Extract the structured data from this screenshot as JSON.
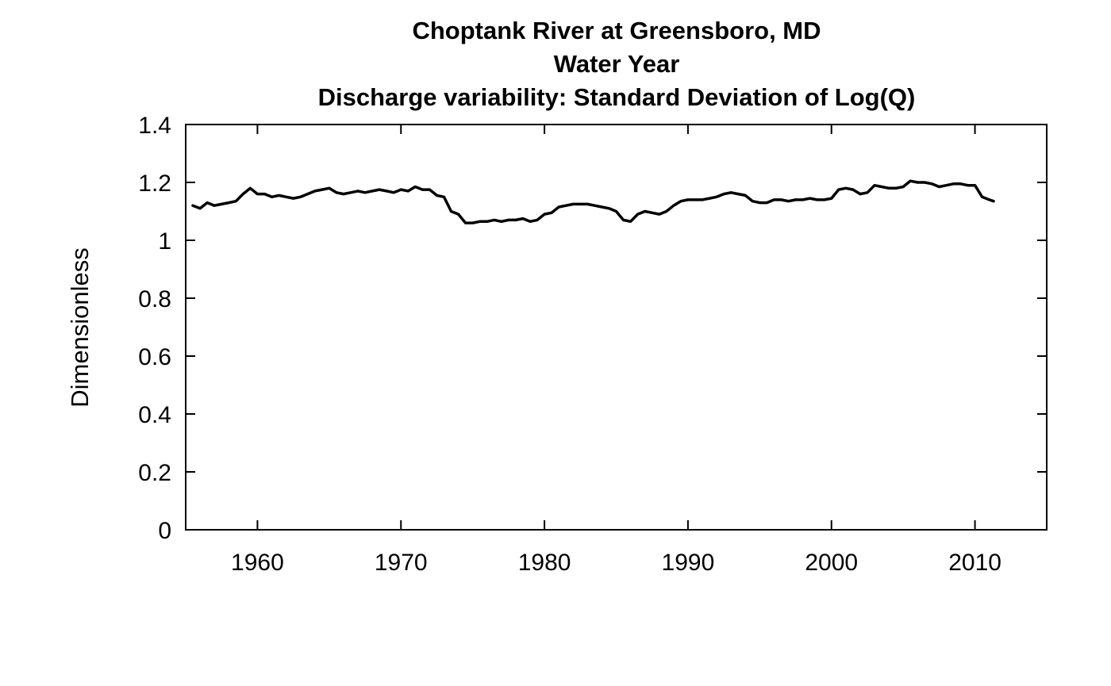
{
  "chart_data": {
    "type": "line",
    "title_lines": [
      "Choptank River at Greensboro, MD",
      "Water Year",
      "Discharge variability: Standard Deviation of Log(Q)"
    ],
    "xlabel": "",
    "ylabel": "Dimensionless",
    "xlim": [
      1955,
      2015
    ],
    "ylim": [
      0,
      1.4
    ],
    "x_ticks": [
      1960,
      1970,
      1980,
      1990,
      2000,
      2010
    ],
    "x_tick_labels": [
      "1960",
      "1970",
      "1980",
      "1990",
      "2000",
      "2010"
    ],
    "y_ticks": [
      0,
      0.2,
      0.4,
      0.6,
      0.8,
      1,
      1.2,
      1.4
    ],
    "y_tick_labels": [
      "0",
      "0.2",
      "0.4",
      "0.6",
      "0.8",
      "1",
      "1.2",
      "1.4"
    ],
    "grid": false,
    "line_color": "#000000",
    "series": [
      {
        "x": [
          1955.5,
          1956.0,
          1956.5,
          1957.0,
          1957.5,
          1958.0,
          1958.5,
          1959.0,
          1959.5,
          1960.0,
          1960.5,
          1961.0,
          1961.5,
          1962.0,
          1962.5,
          1963.0,
          1963.5,
          1964.0,
          1964.5,
          1965.0,
          1965.5,
          1966.0,
          1966.5,
          1967.0,
          1967.5,
          1968.0,
          1968.5,
          1969.0,
          1969.5,
          1970.0,
          1970.5,
          1971.0,
          1971.5,
          1972.0,
          1972.5,
          1973.0,
          1973.5,
          1974.0,
          1974.5,
          1975.0,
          1975.5,
          1976.0,
          1976.5,
          1977.0,
          1977.5,
          1978.0,
          1978.5,
          1979.0,
          1979.5,
          1980.0,
          1980.5,
          1981.0,
          1981.5,
          1982.0,
          1982.5,
          1983.0,
          1983.5,
          1984.0,
          1984.5,
          1985.0,
          1985.5,
          1986.0,
          1986.5,
          1987.0,
          1987.5,
          1988.0,
          1988.5,
          1989.0,
          1989.5,
          1990.0,
          1990.5,
          1991.0,
          1991.5,
          1992.0,
          1992.5,
          1993.0,
          1993.5,
          1994.0,
          1994.5,
          1995.0,
          1995.5,
          1996.0,
          1996.5,
          1997.0,
          1997.5,
          1998.0,
          1998.5,
          1999.0,
          1999.5,
          2000.0,
          2000.5,
          2001.0,
          2001.5,
          2002.0,
          2002.5,
          2003.0,
          2003.5,
          2004.0,
          2004.5,
          2005.0,
          2005.5,
          2006.0,
          2006.5,
          2007.0,
          2007.5,
          2008.0,
          2008.5,
          2009.0,
          2009.5,
          2010.0,
          2010.5,
          2011.0,
          2011.3
        ],
        "values": [
          1.12,
          1.11,
          1.13,
          1.12,
          1.125,
          1.13,
          1.135,
          1.16,
          1.18,
          1.16,
          1.16,
          1.15,
          1.155,
          1.15,
          1.145,
          1.15,
          1.16,
          1.17,
          1.175,
          1.18,
          1.165,
          1.16,
          1.165,
          1.17,
          1.165,
          1.17,
          1.175,
          1.17,
          1.165,
          1.175,
          1.17,
          1.185,
          1.175,
          1.175,
          1.155,
          1.15,
          1.1,
          1.09,
          1.06,
          1.06,
          1.065,
          1.065,
          1.07,
          1.065,
          1.07,
          1.07,
          1.075,
          1.065,
          1.07,
          1.09,
          1.095,
          1.115,
          1.12,
          1.125,
          1.125,
          1.125,
          1.12,
          1.115,
          1.11,
          1.1,
          1.07,
          1.065,
          1.09,
          1.1,
          1.095,
          1.09,
          1.1,
          1.12,
          1.135,
          1.14,
          1.14,
          1.14,
          1.145,
          1.15,
          1.16,
          1.165,
          1.16,
          1.155,
          1.135,
          1.13,
          1.13,
          1.14,
          1.14,
          1.135,
          1.14,
          1.14,
          1.145,
          1.14,
          1.14,
          1.145,
          1.175,
          1.18,
          1.175,
          1.16,
          1.165,
          1.19,
          1.185,
          1.18,
          1.18,
          1.185,
          1.205,
          1.2,
          1.2,
          1.195,
          1.185,
          1.19,
          1.195,
          1.195,
          1.19,
          1.19,
          1.15,
          1.14,
          1.135
        ]
      }
    ]
  }
}
